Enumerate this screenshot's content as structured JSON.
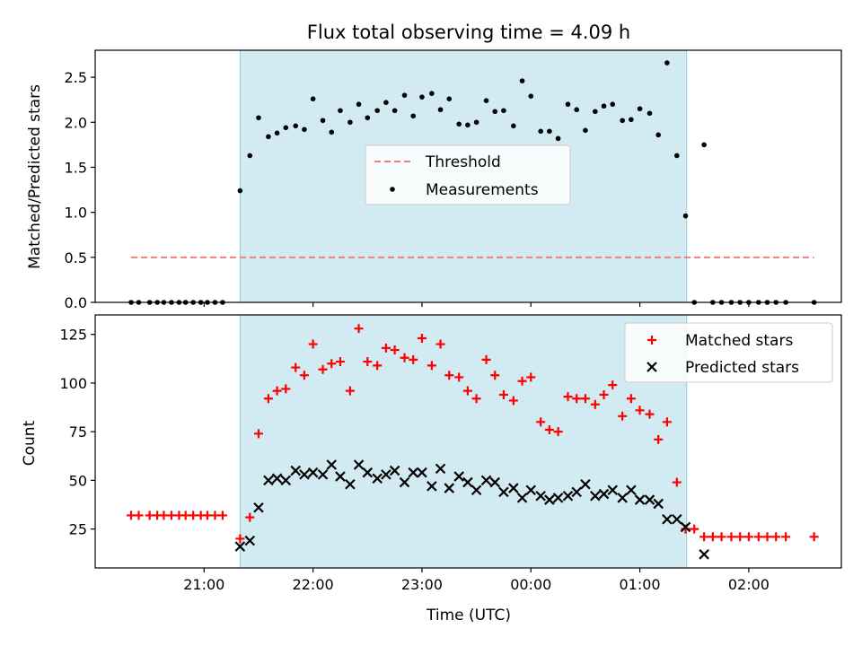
{
  "figure": {
    "title": "Flux total observing time = 4.09 h",
    "xlabel": "Time (UTC)"
  },
  "chart_data": [
    {
      "type": "scatter",
      "title": "Flux total observing time = 4.09 h",
      "ylabel": "Matched/Predicted stars",
      "xlabel": "",
      "x_unit": "hours since 21:00 UTC",
      "xlim": [
        -1.0,
        5.85
      ],
      "ylim": [
        0,
        2.8
      ],
      "yticks": [
        0.0,
        0.5,
        1.0,
        1.5,
        2.0,
        2.5
      ],
      "ytick_labels": [
        "0.0",
        "0.5",
        "1.0",
        "1.5",
        "2.0",
        "2.5"
      ],
      "grid": false,
      "legend_position": "center",
      "shaded_interval": {
        "start": 0.33,
        "end": 4.43,
        "color": "#add8e6"
      },
      "threshold": {
        "name": "Threshold",
        "value": 0.5,
        "x_range": [
          -0.67,
          5.6
        ],
        "color": "#f08080",
        "style": "dashed"
      },
      "series": [
        {
          "name": "Measurements",
          "color": "#000000",
          "marker": "dot",
          "x": [
            -0.67,
            -0.6,
            -0.5,
            -0.43,
            -0.37,
            -0.3,
            -0.23,
            -0.17,
            -0.1,
            -0.03,
            0.03,
            0.1,
            0.17,
            0.33,
            0.42,
            0.5,
            0.59,
            0.67,
            0.75,
            0.84,
            0.92,
            1.0,
            1.09,
            1.17,
            1.25,
            1.34,
            1.42,
            1.5,
            1.59,
            1.67,
            1.75,
            1.84,
            1.92,
            2.0,
            2.09,
            2.17,
            2.25,
            2.34,
            2.42,
            2.5,
            2.59,
            2.67,
            2.75,
            2.84,
            2.92,
            3.0,
            3.09,
            3.17,
            3.25,
            3.34,
            3.42,
            3.5,
            3.59,
            3.67,
            3.75,
            3.84,
            3.92,
            4.0,
            4.09,
            4.17,
            4.25,
            4.34,
            4.42,
            4.5,
            4.59,
            4.67,
            4.75,
            4.84,
            4.92,
            5.0,
            5.09,
            5.17,
            5.25,
            5.34,
            5.6
          ],
          "y": [
            0,
            0,
            0,
            0,
            0,
            0,
            0,
            0,
            0,
            0,
            0,
            0,
            0,
            1.24,
            1.63,
            2.05,
            1.84,
            1.88,
            1.94,
            1.96,
            1.92,
            2.26,
            2.02,
            1.89,
            2.13,
            2.0,
            2.2,
            2.05,
            2.13,
            2.22,
            2.13,
            2.3,
            2.07,
            2.28,
            2.32,
            2.14,
            2.26,
            1.98,
            1.97,
            2.0,
            2.24,
            2.12,
            2.13,
            1.96,
            2.46,
            2.29,
            1.9,
            1.9,
            1.82,
            2.2,
            2.14,
            1.91,
            2.12,
            2.18,
            2.2,
            2.02,
            2.03,
            2.15,
            2.1,
            1.86,
            2.66,
            1.63,
            0.96,
            0,
            1.75,
            0,
            0,
            0,
            0,
            0,
            0,
            0,
            0,
            0,
            0
          ]
        }
      ]
    },
    {
      "type": "scatter",
      "title": "",
      "ylabel": "Count",
      "xlabel": "Time (UTC)",
      "x_unit": "hours since 21:00 UTC",
      "xlim": [
        -1.0,
        5.85
      ],
      "ylim": [
        5,
        135
      ],
      "yticks": [
        25,
        50,
        75,
        100,
        125
      ],
      "ytick_labels": [
        "25",
        "50",
        "75",
        "100",
        "125"
      ],
      "xticks": [
        0,
        1,
        2,
        3,
        4,
        5
      ],
      "xtick_labels": [
        "21:00",
        "22:00",
        "23:00",
        "00:00",
        "01:00",
        "02:00"
      ],
      "grid": false,
      "legend_position": "top-right",
      "shaded_interval": {
        "start": 0.33,
        "end": 4.43,
        "color": "#add8e6"
      },
      "series": [
        {
          "name": "Matched stars",
          "color": "#ff0000",
          "marker": "plus",
          "x": [
            -0.67,
            -0.6,
            -0.5,
            -0.43,
            -0.37,
            -0.3,
            -0.23,
            -0.17,
            -0.1,
            -0.03,
            0.03,
            0.1,
            0.17,
            0.33,
            0.42,
            0.5,
            0.59,
            0.67,
            0.75,
            0.84,
            0.92,
            1.0,
            1.09,
            1.17,
            1.25,
            1.34,
            1.42,
            1.5,
            1.59,
            1.67,
            1.75,
            1.84,
            1.92,
            2.0,
            2.09,
            2.17,
            2.25,
            2.34,
            2.42,
            2.5,
            2.59,
            2.67,
            2.75,
            2.84,
            2.92,
            3.0,
            3.09,
            3.17,
            3.25,
            3.34,
            3.42,
            3.5,
            3.59,
            3.67,
            3.75,
            3.84,
            3.92,
            4.0,
            4.09,
            4.17,
            4.25,
            4.34,
            4.42,
            4.5,
            4.59,
            4.67,
            4.75,
            4.84,
            4.92,
            5.0,
            5.09,
            5.17,
            5.25,
            5.34,
            5.6
          ],
          "y": [
            32,
            32,
            32,
            32,
            32,
            32,
            32,
            32,
            32,
            32,
            32,
            32,
            32,
            20,
            31,
            74,
            92,
            96,
            97,
            108,
            104,
            120,
            107,
            110,
            111,
            96,
            128,
            111,
            109,
            118,
            117,
            113,
            112,
            123,
            109,
            120,
            104,
            103,
            96,
            92,
            112,
            104,
            94,
            91,
            101,
            103,
            80,
            76,
            75,
            93,
            92,
            92,
            89,
            94,
            99,
            83,
            92,
            86,
            84,
            71,
            80,
            49,
            25,
            25,
            21,
            21,
            21,
            21,
            21,
            21,
            21,
            21,
            21,
            21,
            21
          ]
        },
        {
          "name": "Predicted stars",
          "color": "#000000",
          "marker": "x",
          "x": [
            0.33,
            0.42,
            0.5,
            0.59,
            0.67,
            0.75,
            0.84,
            0.92,
            1.0,
            1.09,
            1.17,
            1.25,
            1.34,
            1.42,
            1.5,
            1.59,
            1.67,
            1.75,
            1.84,
            1.92,
            2.0,
            2.09,
            2.17,
            2.25,
            2.34,
            2.42,
            2.5,
            2.59,
            2.67,
            2.75,
            2.84,
            2.92,
            3.0,
            3.09,
            3.17,
            3.25,
            3.34,
            3.42,
            3.5,
            3.59,
            3.67,
            3.75,
            3.84,
            3.92,
            4.0,
            4.09,
            4.17,
            4.25,
            4.34,
            4.42,
            4.59
          ],
          "y": [
            16,
            19,
            36,
            50,
            51,
            50,
            55,
            53,
            54,
            53,
            58,
            52,
            48,
            58,
            54,
            51,
            53,
            55,
            49,
            54,
            54,
            47,
            56,
            46,
            52,
            49,
            45,
            50,
            49,
            44,
            46,
            41,
            45,
            42,
            40,
            41,
            42,
            44,
            48,
            42,
            43,
            45,
            41,
            45,
            40,
            40,
            38,
            30,
            30,
            26,
            12
          ]
        }
      ]
    }
  ]
}
